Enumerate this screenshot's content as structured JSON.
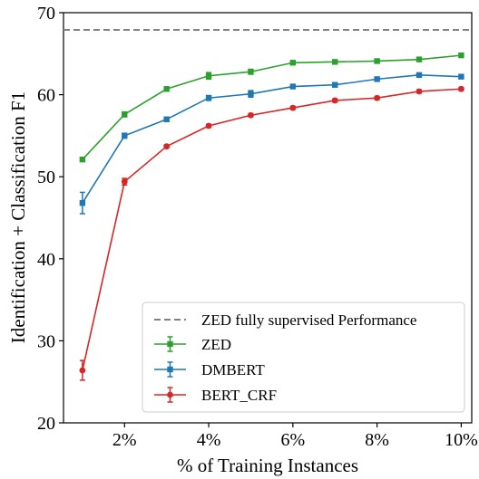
{
  "chart_data": {
    "type": "line",
    "title": "",
    "xlabel": "% of Training Instances",
    "ylabel": "Identification + Classification F1",
    "x": [
      1,
      2,
      3,
      4,
      5,
      6,
      7,
      8,
      9,
      10
    ],
    "xlim": [
      0.55,
      10.25
    ],
    "ylim": [
      20,
      70
    ],
    "xticks": [
      2,
      4,
      6,
      8,
      10
    ],
    "xtick_labels": [
      "2%",
      "4%",
      "6%",
      "8%",
      "10%"
    ],
    "yticks": [
      20,
      30,
      40,
      50,
      60,
      70
    ],
    "ytick_labels": [
      "20",
      "30",
      "40",
      "50",
      "60",
      "70"
    ],
    "grid": false,
    "legend_position": "lower-right",
    "reference_line": {
      "name": "ZED fully supervised Performance",
      "value": 67.9,
      "color": "#808080",
      "style": "dashed"
    },
    "series": [
      {
        "name": "ZED",
        "color": "#2ca02c",
        "marker": "square",
        "values": [
          52.1,
          57.6,
          60.7,
          62.3,
          62.8,
          63.9,
          64.0,
          64.1,
          64.3,
          64.8
        ],
        "errors": [
          0.2,
          0.3,
          0.2,
          0.4,
          0.3,
          0.2,
          0.2,
          0.2,
          0.2,
          0.2
        ]
      },
      {
        "name": "DMBERT",
        "color": "#1f77b4",
        "marker": "square",
        "values": [
          46.8,
          55.0,
          57.0,
          59.6,
          60.1,
          61.0,
          61.2,
          61.9,
          62.4,
          62.2
        ],
        "errors": [
          1.3,
          0.3,
          0.2,
          0.3,
          0.4,
          0.2,
          0.2,
          0.2,
          0.2,
          0.2
        ]
      },
      {
        "name": "BERT_CRF",
        "color": "#d62728",
        "marker": "circle",
        "values": [
          26.4,
          49.4,
          53.7,
          56.2,
          57.5,
          58.4,
          59.3,
          59.6,
          60.4,
          60.7
        ],
        "errors": [
          1.2,
          0.4,
          0.2,
          0.2,
          0.2,
          0.2,
          0.2,
          0.2,
          0.2,
          0.2
        ]
      }
    ]
  }
}
